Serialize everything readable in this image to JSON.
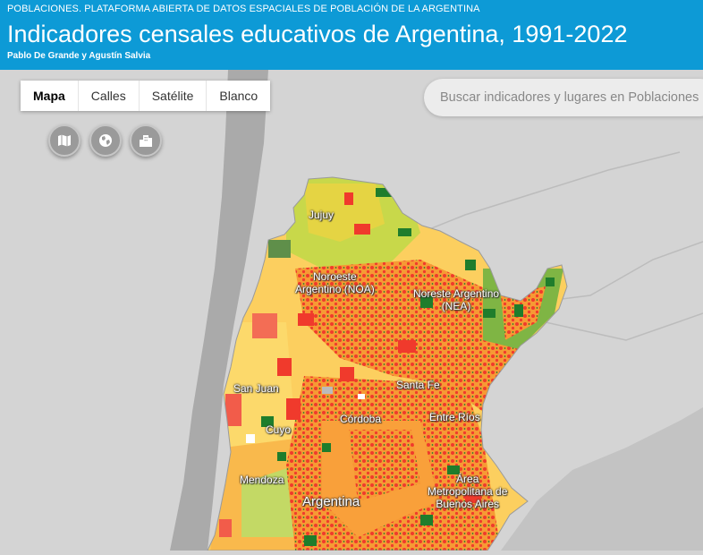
{
  "header": {
    "pretitle": "POBLACIONES. PLATAFORMA ABIERTA DE DATOS ESPACIALES DE POBLACIÓN DE LA ARGENTINA",
    "title": "Indicadores censales educativos de Argentina, 1991-2022",
    "authors": "Pablo De Grande y Agustín Salvia"
  },
  "map_types": [
    {
      "label": "Mapa",
      "active": true
    },
    {
      "label": "Calles",
      "active": false
    },
    {
      "label": "Satélite",
      "active": false
    },
    {
      "label": "Blanco",
      "active": false
    }
  ],
  "tools": [
    {
      "icon": "map-icon"
    },
    {
      "icon": "globe-icon"
    },
    {
      "icon": "buildings-icon"
    }
  ],
  "search": {
    "placeholder": "Buscar indicadores y lugares en Poblaciones"
  },
  "places": {
    "jujuy": "Jujuy",
    "noa": "Noroeste\nArgentino (NOA)",
    "nea": "Noreste Argentino\n(NEA)",
    "san_juan": "San Juan",
    "santa_fe": "Santa Fe",
    "cordoba": "Córdoba",
    "entre_rios": "Entre Ríos",
    "cuyo": "Cuyo",
    "mendoza": "Mendoza",
    "argentina": "Argentina",
    "amba": "Área\nMetropolitana de\nBuenos Aires"
  },
  "colors": {
    "header": "#0d9ad6",
    "land_light": "#d4d4d4",
    "land_dark": "#a9a9a9",
    "ocean": "#c3c3c3",
    "red": "#f03a2c",
    "orange": "#f9a03a",
    "yellow": "#fcd96b",
    "light_green": "#b7d653",
    "dark_green": "#1f7d2c"
  }
}
